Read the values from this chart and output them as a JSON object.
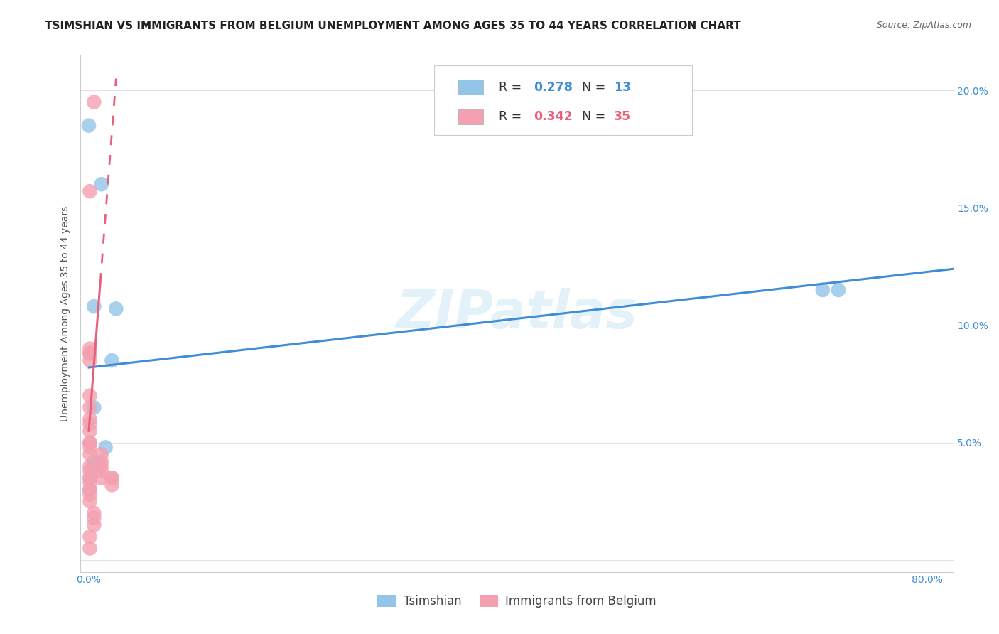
{
  "title": "TSIMSHIAN VS IMMIGRANTS FROM BELGIUM UNEMPLOYMENT AMONG AGES 35 TO 44 YEARS CORRELATION CHART",
  "source": "Source: ZipAtlas.com",
  "ylabel": "Unemployment Among Ages 35 to 44 years",
  "watermark": "ZIPatlas",
  "xlim": [
    -0.008,
    0.825
  ],
  "ylim": [
    -0.005,
    0.215
  ],
  "xticks": [
    0.0,
    0.1,
    0.2,
    0.3,
    0.4,
    0.5,
    0.6,
    0.7,
    0.8
  ],
  "yticks": [
    0.0,
    0.05,
    0.1,
    0.15,
    0.2
  ],
  "legend1_r": "0.278",
  "legend1_n": "13",
  "legend2_r": "0.342",
  "legend2_n": "35",
  "tsimshian_color": "#92C5E8",
  "belgium_color": "#F4A0B0",
  "tsimshian_trend_color": "#3E8DD6",
  "belgium_trend_color": "#E8607A",
  "tsimshian_x": [
    0.0,
    0.012,
    0.022,
    0.026,
    0.005,
    0.005,
    0.016,
    0.005,
    0.001,
    0.7,
    0.715,
    0.005,
    0.001
  ],
  "tsimshian_y": [
    0.185,
    0.16,
    0.085,
    0.107,
    0.108,
    0.065,
    0.048,
    0.042,
    0.035,
    0.115,
    0.115,
    0.04,
    0.03
  ],
  "belgium_x": [
    0.005,
    0.001,
    0.001,
    0.001,
    0.001,
    0.001,
    0.001,
    0.001,
    0.001,
    0.001,
    0.001,
    0.001,
    0.001,
    0.001,
    0.001,
    0.001,
    0.001,
    0.001,
    0.001,
    0.001,
    0.001,
    0.001,
    0.012,
    0.012,
    0.012,
    0.012,
    0.012,
    0.022,
    0.022,
    0.022,
    0.005,
    0.005,
    0.005,
    0.001,
    0.001
  ],
  "belgium_y": [
    0.195,
    0.157,
    0.09,
    0.088,
    0.088,
    0.085,
    0.07,
    0.065,
    0.06,
    0.058,
    0.055,
    0.05,
    0.05,
    0.048,
    0.045,
    0.04,
    0.038,
    0.035,
    0.033,
    0.03,
    0.028,
    0.025,
    0.045,
    0.042,
    0.04,
    0.038,
    0.035,
    0.035,
    0.035,
    0.032,
    0.02,
    0.018,
    0.015,
    0.01,
    0.005
  ],
  "tsimshian_trend_x0": 0.0,
  "tsimshian_trend_x1": 0.825,
  "tsimshian_trend_y0": 0.082,
  "tsimshian_trend_y1": 0.124,
  "belgium_trend_x0": 0.0,
  "belgium_trend_x1": 0.026,
  "belgium_trend_y0_solid_start": 0.055,
  "belgium_trend_y0_solid_end": 0.118,
  "belgium_trend_y1": 0.205,
  "background_color": "#FFFFFF",
  "grid_color": "#E2E2E2",
  "title_fontsize": 11,
  "label_fontsize": 10,
  "tick_fontsize": 10,
  "source_fontsize": 9
}
